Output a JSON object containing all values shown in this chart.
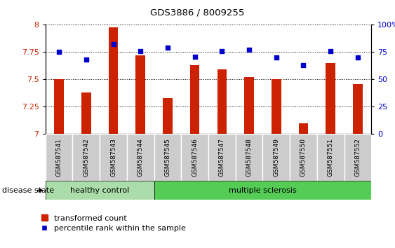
{
  "title": "GDS3886 / 8009255",
  "samples": [
    "GSM587541",
    "GSM587542",
    "GSM587543",
    "GSM587544",
    "GSM587545",
    "GSM587546",
    "GSM587547",
    "GSM587548",
    "GSM587549",
    "GSM587550",
    "GSM587551",
    "GSM587552"
  ],
  "transformed_count": [
    7.5,
    7.38,
    7.98,
    7.72,
    7.33,
    7.63,
    7.59,
    7.52,
    7.5,
    7.1,
    7.65,
    7.46
  ],
  "percentile_rank": [
    75,
    68,
    82,
    76,
    79,
    71,
    76,
    77,
    70,
    63,
    76,
    70
  ],
  "ylim_left": [
    7.0,
    8.0
  ],
  "ylim_right": [
    0,
    100
  ],
  "yticks_left": [
    7.0,
    7.25,
    7.5,
    7.75,
    8.0
  ],
  "yticks_right": [
    0,
    25,
    50,
    75,
    100
  ],
  "bar_color": "#cc2200",
  "dot_color": "#0000cc",
  "healthy_color": "#aaddaa",
  "ms_color": "#55cc55",
  "healthy_n": 4,
  "ms_n": 8,
  "healthy_label": "healthy control",
  "ms_label": "multiple sclerosis",
  "disease_state_label": "disease state",
  "legend_bar_label": "transformed count",
  "legend_dot_label": "percentile rank within the sample",
  "tick_label_color_left": "#cc2200",
  "tick_label_color_right": "#0000cc",
  "bar_width": 0.35,
  "dot_size": 25,
  "cell_bg": "#cccccc",
  "cell_border": "#888888"
}
